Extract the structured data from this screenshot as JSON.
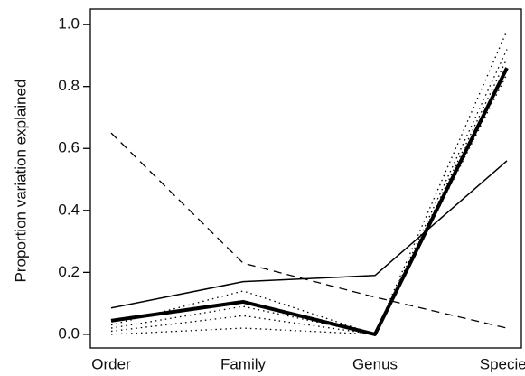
{
  "chart_data": {
    "type": "line",
    "y_label": "Proportion variation explained",
    "categories": [
      "Order",
      "Family",
      "Genus",
      "Species"
    ],
    "ylim": [
      -0.044,
      1.05
    ],
    "yticks": [
      {
        "value": 0,
        "label": "0.0"
      },
      0.2,
      0.4,
      0.6,
      0.8,
      {
        "value": 1,
        "label": "1.0"
      }
    ],
    "series": [
      {
        "color": "#000000",
        "style": "dotted",
        "width": 1.3,
        "values": [
          0.03,
          0.14,
          0.0,
          0.98
        ]
      },
      {
        "color": "#000000",
        "style": "dotted",
        "width": 1.3,
        "values": [
          0.02,
          0.09,
          0.0,
          0.92
        ]
      },
      {
        "color": "#000000",
        "style": "dotted",
        "width": 1.3,
        "values": [
          0.01,
          0.06,
          0.0,
          0.89
        ]
      },
      {
        "color": "#000000",
        "style": "dotted",
        "width": 1.3,
        "values": [
          0.0,
          0.02,
          0.0,
          0.84
        ]
      },
      {
        "color": "#000000",
        "style": "dashed",
        "width": 1.3,
        "values": [
          0.65,
          0.23,
          0.12,
          0.02
        ]
      },
      {
        "color": "#000000",
        "style": "solid",
        "width": 1.5,
        "values": [
          0.085,
          0.17,
          0.19,
          0.56
        ]
      },
      {
        "color": "#000000",
        "style": "solid",
        "width": 4,
        "values": [
          0.044,
          0.105,
          0.0,
          0.86
        ]
      }
    ]
  }
}
